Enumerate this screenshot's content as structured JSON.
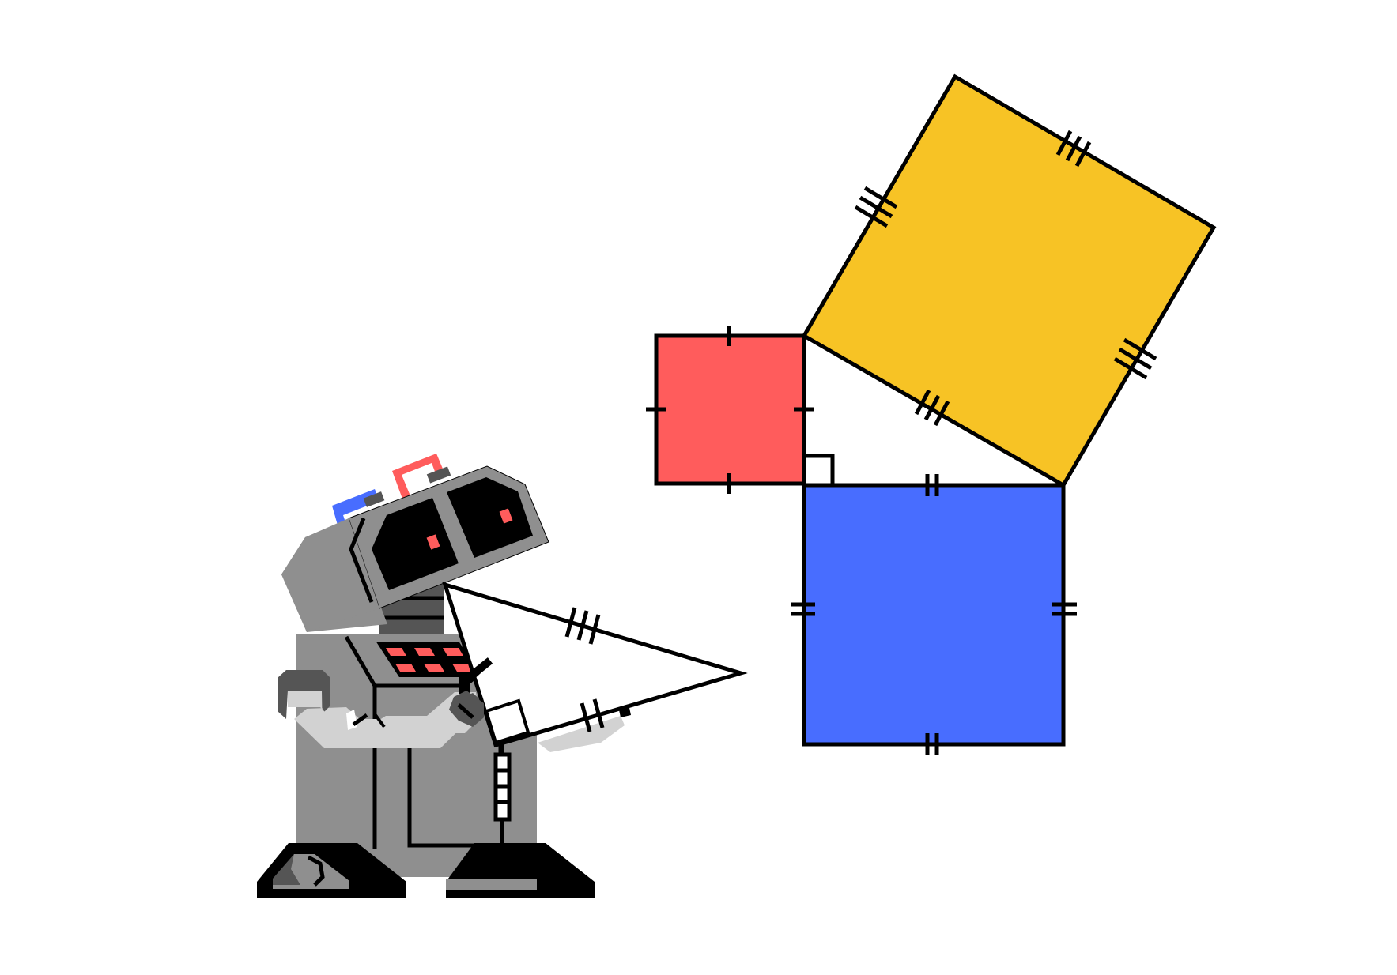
{
  "illustration": {
    "subject": "robot-with-pythagorean-squares",
    "colors": {
      "background": "#ffffff",
      "outline": "#000000",
      "square_red": "#ff5c5c",
      "square_yellow": "#f7c325",
      "square_blue": "#486dff",
      "robot_body": "#8f8f8f",
      "robot_dark": "#555555",
      "robot_light": "#d2d2d2",
      "robot_black": "#000000",
      "robot_eye": "#ff5c5c",
      "antenna_red": "#ff5c5c",
      "antenna_blue": "#486dff"
    },
    "icons": [
      "robot-icon",
      "right-triangle-icon",
      "red-square-icon",
      "yellow-square-icon",
      "blue-square-icon",
      "right-angle-marker-icon",
      "tick-mark-icon"
    ]
  }
}
